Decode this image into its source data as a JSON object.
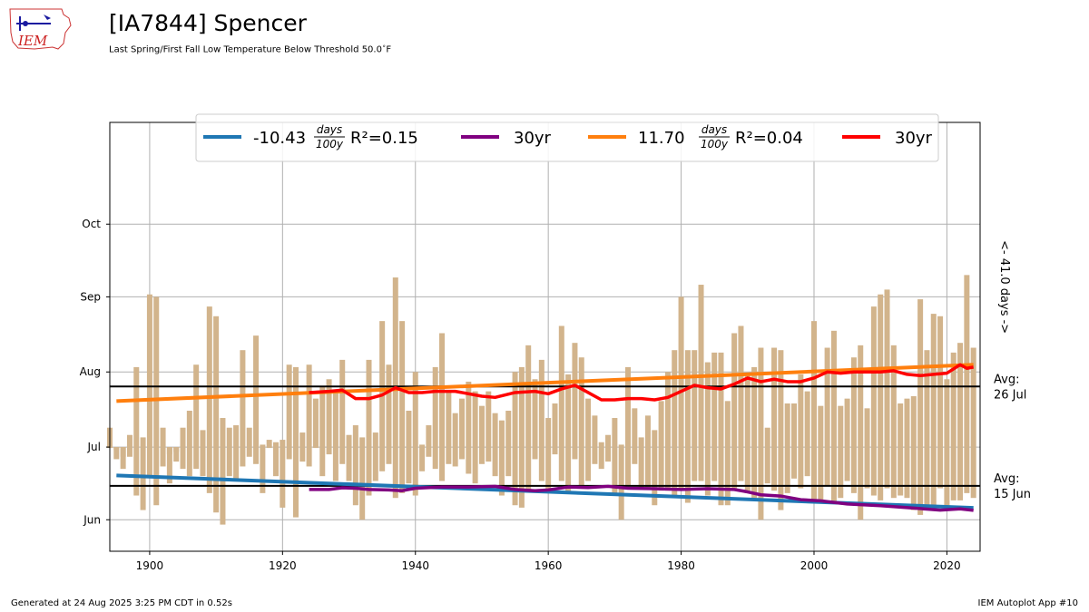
{
  "header": {
    "logo_text": "IEM",
    "title": "[IA7844] Spencer",
    "subtitle": "Last Spring/First Fall Low Temperature Below Threshold 50.0",
    "subtitle_unit_sup": "∘",
    "subtitle_unit": "F"
  },
  "footer": {
    "generated": "Generated at 24 Aug 2025 3:25 PM CDT in 0.52s",
    "app": "IEM Autoplot App #10"
  },
  "colors": {
    "bar": "#d2b48c",
    "spring_trend": "#1f77b4",
    "spring_avg30": "#800080",
    "fall_trend": "#ff7f0e",
    "fall_avg30": "#ff0000",
    "grid": "#b0b0b0"
  },
  "chart_data": {
    "type": "bar",
    "description_units": "day of year (Jan 1 = 1)",
    "xlim": [
      1894,
      2025
    ],
    "ylim": [
      139,
      316
    ],
    "x_ticks": [
      1900,
      1920,
      1940,
      1960,
      1980,
      2000,
      2020
    ],
    "y_ticks": [
      {
        "label": "Jun",
        "doy": 152
      },
      {
        "label": "Jul",
        "doy": 182
      },
      {
        "label": "Aug",
        "doy": 213
      },
      {
        "label": "Sep",
        "doy": 244
      },
      {
        "label": "Oct",
        "doy": 274
      }
    ],
    "grid": true,
    "legend": {
      "placement": "top-center",
      "entries": [
        {
          "id": "spring_trend",
          "text_prefix": "-10.43",
          "frac_num": "days",
          "frac_den": "100y",
          "r2": "R²=0.15"
        },
        {
          "id": "spring_avg30",
          "text": "30yr"
        },
        {
          "id": "fall_trend",
          "text_prefix": "11.70",
          "frac_num": "days",
          "frac_den": "100y",
          "r2": "R²=0.04"
        },
        {
          "id": "fall_avg30",
          "text": "30yr"
        }
      ]
    },
    "avg_lines": [
      {
        "label_line1": "Avg:",
        "label_line2": "26 Jul",
        "doy": 207
      },
      {
        "label_line1": "Avg:",
        "label_line2": "15 Jun",
        "doy": 166
      }
    ],
    "gap_label": "<- 41.0 days ->",
    "bars": [
      {
        "year": 1894,
        "spring": 182,
        "fall": 190
      },
      {
        "year": 1895,
        "spring": 181,
        "fall": 177
      },
      {
        "year": 1896,
        "spring": 173,
        "fall": 178
      },
      {
        "year": 1897,
        "spring": 178,
        "fall": 187
      },
      {
        "year": 1898,
        "spring": 162,
        "fall": 215
      },
      {
        "year": 1899,
        "spring": 156,
        "fall": 186
      },
      {
        "year": 1900,
        "spring": 170,
        "fall": 245
      },
      {
        "year": 1901,
        "spring": 158,
        "fall": 244
      },
      {
        "year": 1902,
        "spring": 174,
        "fall": 190
      },
      {
        "year": 1903,
        "spring": 167,
        "fall": 179
      },
      {
        "year": 1904,
        "spring": 176,
        "fall": 180
      },
      {
        "year": 1905,
        "spring": 173,
        "fall": 190
      },
      {
        "year": 1906,
        "spring": 170,
        "fall": 197
      },
      {
        "year": 1907,
        "spring": 173,
        "fall": 216
      },
      {
        "year": 1908,
        "spring": 170,
        "fall": 189
      },
      {
        "year": 1909,
        "spring": 163,
        "fall": 240
      },
      {
        "year": 1910,
        "spring": 155,
        "fall": 236
      },
      {
        "year": 1911,
        "spring": 150,
        "fall": 194
      },
      {
        "year": 1912,
        "spring": 170,
        "fall": 190
      },
      {
        "year": 1913,
        "spring": 169,
        "fall": 191
      },
      {
        "year": 1914,
        "spring": 174,
        "fall": 222
      },
      {
        "year": 1915,
        "spring": 178,
        "fall": 190
      },
      {
        "year": 1916,
        "spring": 175,
        "fall": 228
      },
      {
        "year": 1917,
        "spring": 163,
        "fall": 183
      },
      {
        "year": 1918,
        "spring": 182,
        "fall": 185
      },
      {
        "year": 1919,
        "spring": 170,
        "fall": 184
      },
      {
        "year": 1920,
        "spring": 157,
        "fall": 185
      },
      {
        "year": 1921,
        "spring": 177,
        "fall": 216
      },
      {
        "year": 1922,
        "spring": 153,
        "fall": 215
      },
      {
        "year": 1923,
        "spring": 176,
        "fall": 188
      },
      {
        "year": 1924,
        "spring": 174,
        "fall": 216
      },
      {
        "year": 1925,
        "spring": 182,
        "fall": 202
      },
      {
        "year": 1926,
        "spring": 170,
        "fall": 207
      },
      {
        "year": 1927,
        "spring": 179,
        "fall": 210
      },
      {
        "year": 1928,
        "spring": 168,
        "fall": 205
      },
      {
        "year": 1929,
        "spring": 175,
        "fall": 218
      },
      {
        "year": 1930,
        "spring": 168,
        "fall": 187
      },
      {
        "year": 1931,
        "spring": 158,
        "fall": 191
      },
      {
        "year": 1932,
        "spring": 152,
        "fall": 186
      },
      {
        "year": 1933,
        "spring": 162,
        "fall": 218
      },
      {
        "year": 1934,
        "spring": 168,
        "fall": 188
      },
      {
        "year": 1935,
        "spring": 172,
        "fall": 234
      },
      {
        "year": 1936,
        "spring": 175,
        "fall": 216
      },
      {
        "year": 1937,
        "spring": 161,
        "fall": 252
      },
      {
        "year": 1938,
        "spring": 163,
        "fall": 234
      },
      {
        "year": 1939,
        "spring": 167,
        "fall": 197
      },
      {
        "year": 1940,
        "spring": 162,
        "fall": 213
      },
      {
        "year": 1941,
        "spring": 172,
        "fall": 183
      },
      {
        "year": 1942,
        "spring": 178,
        "fall": 191
      },
      {
        "year": 1943,
        "spring": 173,
        "fall": 215
      },
      {
        "year": 1944,
        "spring": 168,
        "fall": 229
      },
      {
        "year": 1945,
        "spring": 175,
        "fall": 205
      },
      {
        "year": 1946,
        "spring": 174,
        "fall": 196
      },
      {
        "year": 1947,
        "spring": 177,
        "fall": 202
      },
      {
        "year": 1948,
        "spring": 171,
        "fall": 209
      },
      {
        "year": 1949,
        "spring": 167,
        "fall": 205
      },
      {
        "year": 1950,
        "spring": 175,
        "fall": 199
      },
      {
        "year": 1951,
        "spring": 176,
        "fall": 205
      },
      {
        "year": 1952,
        "spring": 170,
        "fall": 196
      },
      {
        "year": 1953,
        "spring": 162,
        "fall": 193
      },
      {
        "year": 1954,
        "spring": 170,
        "fall": 197
      },
      {
        "year": 1955,
        "spring": 158,
        "fall": 213
      },
      {
        "year": 1956,
        "spring": 157,
        "fall": 215
      },
      {
        "year": 1957,
        "spring": 164,
        "fall": 224
      },
      {
        "year": 1958,
        "spring": 177,
        "fall": 210
      },
      {
        "year": 1959,
        "spring": 168,
        "fall": 218
      },
      {
        "year": 1960,
        "spring": 163,
        "fall": 194
      },
      {
        "year": 1961,
        "spring": 179,
        "fall": 200
      },
      {
        "year": 1962,
        "spring": 168,
        "fall": 232
      },
      {
        "year": 1963,
        "spring": 163,
        "fall": 212
      },
      {
        "year": 1964,
        "spring": 177,
        "fall": 225
      },
      {
        "year": 1965,
        "spring": 165,
        "fall": 219
      },
      {
        "year": 1966,
        "spring": 168,
        "fall": 202
      },
      {
        "year": 1967,
        "spring": 175,
        "fall": 195
      },
      {
        "year": 1968,
        "spring": 173,
        "fall": 184
      },
      {
        "year": 1969,
        "spring": 176,
        "fall": 187
      },
      {
        "year": 1970,
        "spring": 162,
        "fall": 194
      },
      {
        "year": 1971,
        "spring": 152,
        "fall": 183
      },
      {
        "year": 1972,
        "spring": 166,
        "fall": 215
      },
      {
        "year": 1973,
        "spring": 175,
        "fall": 198
      },
      {
        "year": 1974,
        "spring": 165,
        "fall": 186
      },
      {
        "year": 1975,
        "spring": 165,
        "fall": 195
      },
      {
        "year": 1976,
        "spring": 158,
        "fall": 189
      },
      {
        "year": 1977,
        "spring": 164,
        "fall": 201
      },
      {
        "year": 1978,
        "spring": 164,
        "fall": 213
      },
      {
        "year": 1979,
        "spring": 162,
        "fall": 222
      },
      {
        "year": 1980,
        "spring": 164,
        "fall": 244
      },
      {
        "year": 1981,
        "spring": 159,
        "fall": 222
      },
      {
        "year": 1982,
        "spring": 168,
        "fall": 222
      },
      {
        "year": 1983,
        "spring": 168,
        "fall": 249
      },
      {
        "year": 1984,
        "spring": 162,
        "fall": 217
      },
      {
        "year": 1985,
        "spring": 168,
        "fall": 221
      },
      {
        "year": 1986,
        "spring": 158,
        "fall": 221
      },
      {
        "year": 1987,
        "spring": 158,
        "fall": 201
      },
      {
        "year": 1988,
        "spring": 165,
        "fall": 229
      },
      {
        "year": 1989,
        "spring": 168,
        "fall": 232
      },
      {
        "year": 1990,
        "spring": 163,
        "fall": 212
      },
      {
        "year": 1991,
        "spring": 161,
        "fall": 215
      },
      {
        "year": 1992,
        "spring": 152,
        "fall": 223
      },
      {
        "year": 1993,
        "spring": 167,
        "fall": 190
      },
      {
        "year": 1994,
        "spring": 164,
        "fall": 223
      },
      {
        "year": 1995,
        "spring": 156,
        "fall": 222
      },
      {
        "year": 1996,
        "spring": 163,
        "fall": 200
      },
      {
        "year": 1997,
        "spring": 169,
        "fall": 200
      },
      {
        "year": 1998,
        "spring": 165,
        "fall": 212
      },
      {
        "year": 1999,
        "spring": 170,
        "fall": 205
      },
      {
        "year": 2000,
        "spring": 160,
        "fall": 234
      },
      {
        "year": 2001,
        "spring": 160,
        "fall": 199
      },
      {
        "year": 2002,
        "spring": 166,
        "fall": 223
      },
      {
        "year": 2003,
        "spring": 159,
        "fall": 230
      },
      {
        "year": 2004,
        "spring": 161,
        "fall": 199
      },
      {
        "year": 2005,
        "spring": 168,
        "fall": 202
      },
      {
        "year": 2006,
        "spring": 163,
        "fall": 219
      },
      {
        "year": 2007,
        "spring": 152,
        "fall": 224
      },
      {
        "year": 2008,
        "spring": 165,
        "fall": 198
      },
      {
        "year": 2009,
        "spring": 162,
        "fall": 240
      },
      {
        "year": 2010,
        "spring": 160,
        "fall": 245
      },
      {
        "year": 2011,
        "spring": 165,
        "fall": 247
      },
      {
        "year": 2012,
        "spring": 161,
        "fall": 224
      },
      {
        "year": 2013,
        "spring": 162,
        "fall": 200
      },
      {
        "year": 2014,
        "spring": 161,
        "fall": 202
      },
      {
        "year": 2015,
        "spring": 156,
        "fall": 203
      },
      {
        "year": 2016,
        "spring": 154,
        "fall": 243
      },
      {
        "year": 2017,
        "spring": 157,
        "fall": 222
      },
      {
        "year": 2018,
        "spring": 158,
        "fall": 237
      },
      {
        "year": 2019,
        "spring": 165,
        "fall": 236
      },
      {
        "year": 2020,
        "spring": 157,
        "fall": 210
      },
      {
        "year": 2021,
        "spring": 160,
        "fall": 221
      },
      {
        "year": 2022,
        "spring": 160,
        "fall": 225
      },
      {
        "year": 2023,
        "spring": 163,
        "fall": 253
      },
      {
        "year": 2024,
        "spring": 161,
        "fall": 223
      }
    ],
    "series": [
      {
        "id": "spring_trend",
        "x": [
          1895,
          2024
        ],
        "y": [
          170.3,
          156.9
        ]
      },
      {
        "id": "fall_trend",
        "x": [
          1895,
          2024
        ],
        "y": [
          201.0,
          216.0
        ]
      },
      {
        "id": "spring_avg30",
        "x": [
          1924,
          1927,
          1929,
          1931,
          1933,
          1936,
          1938,
          1940,
          1944,
          1948,
          1952,
          1955,
          1958,
          1960,
          1963,
          1966,
          1969,
          1972,
          1976,
          1980,
          1984,
          1988,
          1990,
          1992,
          1995,
          1998,
          2001,
          2005,
          2010,
          2015,
          2019,
          2022,
          2024
        ],
        "y": [
          164.5,
          164.5,
          165.2,
          165.0,
          164.5,
          164.3,
          164.0,
          165.0,
          165.5,
          165.5,
          165.8,
          164.5,
          164.0,
          164.3,
          165.5,
          165.3,
          165.8,
          165.0,
          164.8,
          164.5,
          164.8,
          164.5,
          163.5,
          162.3,
          161.8,
          160.3,
          159.8,
          158.5,
          157.8,
          156.8,
          156.0,
          156.5,
          155.9
        ]
      },
      {
        "id": "fall_avg30",
        "x": [
          1924,
          1927,
          1929,
          1931,
          1933,
          1935,
          1937,
          1939,
          1941,
          1943,
          1946,
          1950,
          1952,
          1955,
          1958,
          1960,
          1962,
          1964,
          1966,
          1968,
          1970,
          1972,
          1974,
          1976,
          1978,
          1980,
          1982,
          1984,
          1986,
          1988,
          1990,
          1992,
          1994,
          1996,
          1998,
          2000,
          2002,
          2004,
          2006,
          2008,
          2010,
          2012,
          2014,
          2016,
          2018,
          2020,
          2022,
          2023,
          2024
        ],
        "y": [
          204.5,
          205.0,
          205.5,
          202.0,
          202.0,
          203.5,
          206.5,
          204.5,
          204.5,
          205.0,
          205.0,
          203.0,
          202.5,
          204.5,
          205.0,
          204.0,
          206.0,
          207.5,
          204.5,
          201.5,
          201.5,
          202.0,
          202.0,
          201.5,
          202.5,
          205.0,
          207.5,
          206.5,
          206.0,
          208.0,
          210.5,
          209.0,
          210.0,
          209.0,
          209.0,
          210.5,
          213.0,
          212.5,
          213.0,
          213.0,
          213.0,
          213.5,
          212.0,
          211.5,
          212.0,
          212.5,
          216.0,
          214.5,
          215.0
        ]
      }
    ]
  }
}
